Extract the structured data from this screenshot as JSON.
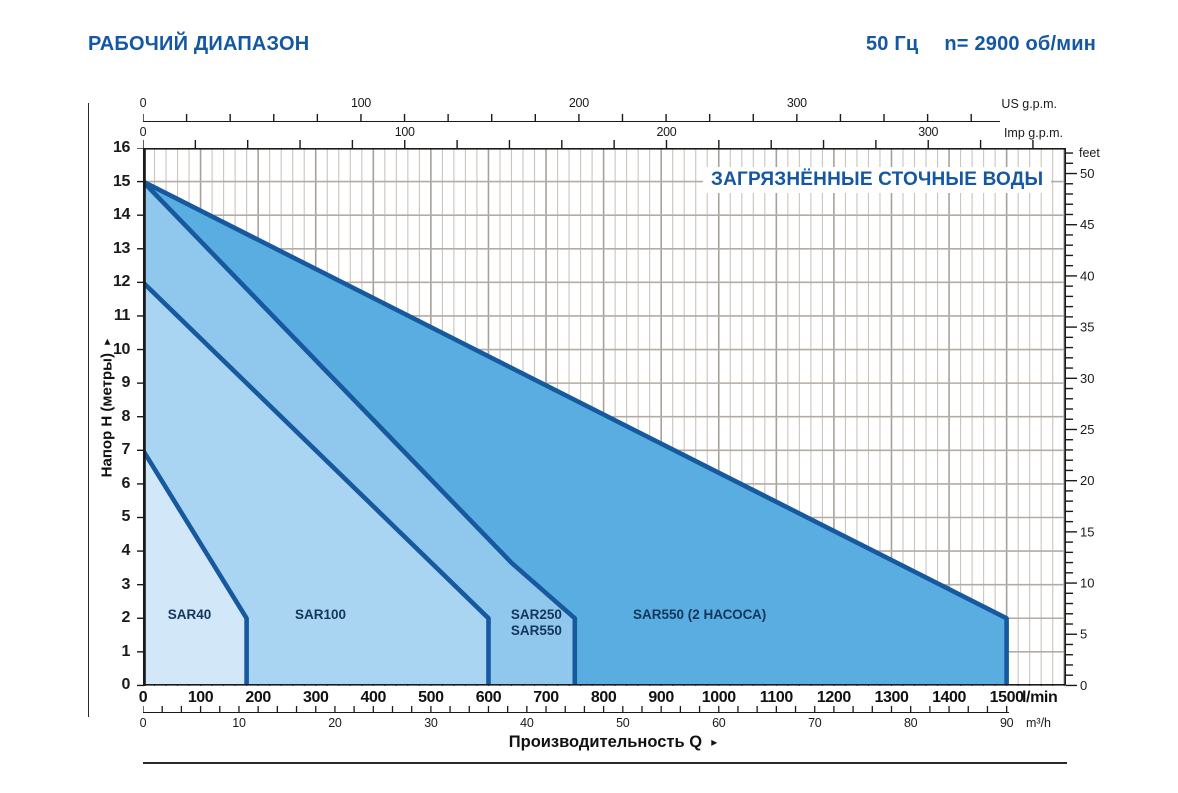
{
  "header": {
    "title": "РАБОЧИЙ ДИАПАЗОН",
    "frequency": "50 Гц",
    "speed": "n= 2900 об/мин"
  },
  "annotation": {
    "text": "ЗАГРЯЗНЁННЫЕ СТОЧНЫЕ ВОДЫ"
  },
  "chart_data": {
    "type": "area",
    "title": "РАБОЧИЙ ДИАПАЗОН",
    "xlabel": "Производительность Q",
    "ylabel": "Напор H (метры)",
    "x_arrow": "▸",
    "y_arrow": "▸",
    "x_range_lmin": [
      0,
      1600
    ],
    "y_range_m": [
      0,
      16
    ],
    "grid": true,
    "axes": {
      "lmin": {
        "unit_label": "l/min",
        "labels": [
          0,
          100,
          200,
          300,
          400,
          500,
          600,
          700,
          800,
          900,
          1000,
          1100,
          1200,
          1300,
          1400,
          1500
        ],
        "minor_step": 20
      },
      "m3h": {
        "unit_label": "m³/h",
        "labels": [
          0,
          10,
          20,
          30,
          40,
          50,
          60,
          70,
          80,
          90
        ],
        "minor_step": 2,
        "lmin_per_unit": 16.6667
      },
      "us_gpm": {
        "unit_label": "US g.p.m.",
        "labels": [
          0,
          100,
          200,
          300
        ],
        "minor_step": 20,
        "lmin_per_unit": 3.78541,
        "max_tick": 380
      },
      "imp_gpm": {
        "unit_label": "Imp g.p.m.",
        "labels": [
          0,
          100,
          200,
          300
        ],
        "minor_step": 20,
        "lmin_per_unit": 4.54609,
        "max_tick": 340
      },
      "meters": {
        "labels": [
          0,
          1,
          2,
          3,
          4,
          5,
          6,
          7,
          8,
          9,
          10,
          11,
          12,
          13,
          14,
          15,
          16
        ]
      },
      "feet": {
        "unit_label": "feet",
        "labels": [
          0,
          5,
          10,
          15,
          20,
          25,
          30,
          35,
          40,
          45,
          50
        ],
        "minor_step": 1,
        "m_per_unit": 0.3048,
        "max_tick": 52
      }
    },
    "regions": [
      {
        "name": "SAR550-2-pumps",
        "label_lines": [
          "SAR550 (2 НАСОСА)"
        ],
        "points_q_h": [
          [
            0,
            15
          ],
          [
            1500,
            2
          ],
          [
            1500,
            0
          ]
        ],
        "fill": "#59ade1",
        "label_pos_q_h": [
          851,
          1.98
        ]
      },
      {
        "name": "SAR250-SAR550",
        "label_lines": [
          "SAR250",
          "SAR550"
        ],
        "points_q_h": [
          [
            0,
            15
          ],
          [
            640,
            3.65
          ],
          [
            750,
            2
          ],
          [
            750,
            0
          ]
        ],
        "fill": "#90c7ed",
        "label_pos_q_h": [
          639,
          1.98
        ]
      },
      {
        "name": "SAR100",
        "label_lines": [
          "SAR100"
        ],
        "points_q_h": [
          [
            0,
            12
          ],
          [
            600,
            2
          ],
          [
            600,
            0
          ]
        ],
        "fill": "#aad5f2",
        "label_pos_q_h": [
          264,
          1.98
        ]
      },
      {
        "name": "SAR40",
        "label_lines": [
          "SAR40"
        ],
        "points_q_h": [
          [
            0,
            7
          ],
          [
            180,
            2
          ],
          [
            180,
            0
          ]
        ],
        "fill": "#d2e7f8",
        "label_pos_q_h": [
          43,
          1.98
        ]
      }
    ],
    "colors": {
      "region_line": "#17599e",
      "grid_minor": "#cbc4bd",
      "grid_major": "#a8a19a",
      "grid_horizontal": "#b3aca5",
      "plot_border": "#1a1a1a",
      "region_label_text": "#13365c",
      "accent_blue": "#1457a3"
    }
  }
}
